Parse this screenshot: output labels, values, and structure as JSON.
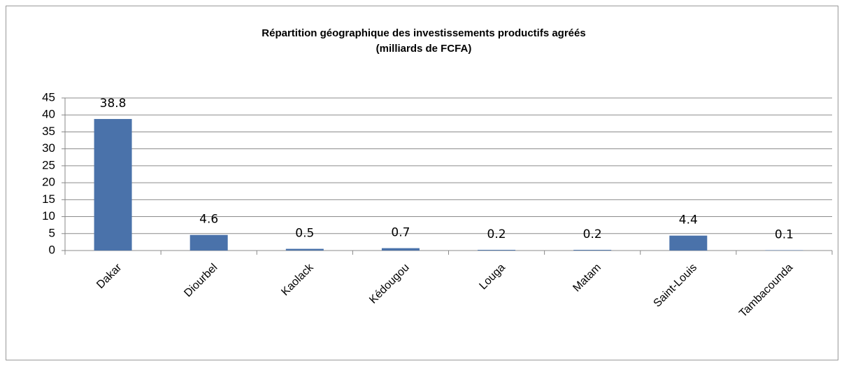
{
  "chart_data": {
    "type": "bar",
    "title": "Répartition géographique des investissements  productifs agréés",
    "subtitle": "(milliards de FCFA)",
    "categories": [
      "Dakar",
      "Diourbel",
      "Kaolack",
      "Kédougou",
      "Louga",
      "Matam",
      "Saint-Louis",
      "Tambacounda"
    ],
    "values": [
      38.8,
      4.6,
      0.5,
      0.7,
      0.2,
      0.2,
      4.4,
      0.1
    ],
    "color": "#4a72aa",
    "ylim": [
      0,
      45
    ],
    "yticks": [
      0,
      5,
      10,
      15,
      20,
      25,
      30,
      35,
      40,
      45
    ],
    "grid": true
  }
}
